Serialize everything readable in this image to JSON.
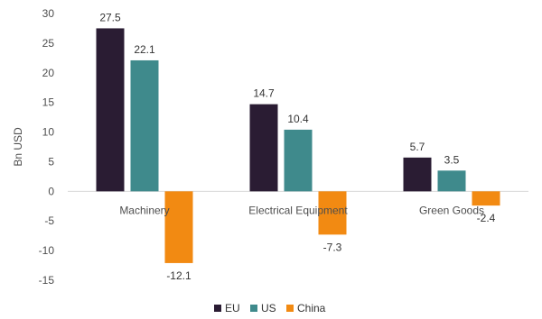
{
  "chart_data": {
    "type": "bar",
    "ylabel": "Bn USD",
    "xlabel": "",
    "ylim": [
      -15,
      30
    ],
    "yticks": [
      30,
      25,
      20,
      15,
      10,
      5,
      0,
      -5,
      -10,
      -15
    ],
    "grid": false,
    "legend_position": "bottom-center",
    "categories": [
      "Machinery",
      "Electrical Equipment",
      "Green Goods"
    ],
    "series": [
      {
        "name": "EU",
        "color": "#2a1c33",
        "values": [
          27.5,
          14.7,
          5.7
        ],
        "labels": [
          "27.5",
          "14.7",
          "5.7"
        ]
      },
      {
        "name": "US",
        "color": "#3f8a8c",
        "values": [
          22.1,
          10.4,
          3.5
        ],
        "labels": [
          "22.1",
          "10.4",
          "3.5"
        ]
      },
      {
        "name": "China",
        "color": "#f28a12",
        "values": [
          -12.1,
          -7.3,
          -2.4
        ],
        "labels": [
          "-12.1",
          "-7.3",
          "-2.4"
        ]
      }
    ]
  }
}
